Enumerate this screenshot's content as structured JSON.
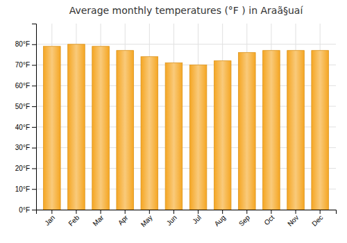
{
  "chart_data": {
    "type": "bar",
    "title": "Average monthly temperatures (°F ) in Araã§uaí",
    "categories": [
      "Jan",
      "Feb",
      "Mar",
      "Apr",
      "May",
      "Jun",
      "Jul",
      "Aug",
      "Sep",
      "Oct",
      "Nov",
      "Dec"
    ],
    "values": [
      79,
      80,
      79,
      77,
      74,
      71,
      70,
      72,
      76,
      77,
      77,
      77
    ],
    "color": "#F5A623",
    "ylim": [
      0,
      90
    ],
    "yticks": [
      {
        "value": 0,
        "label": "0°F"
      },
      {
        "value": 10,
        "label": "10°F"
      },
      {
        "value": 20,
        "label": "20°F"
      },
      {
        "value": 30,
        "label": "30°F"
      },
      {
        "value": 40,
        "label": "40°F"
      },
      {
        "value": 50,
        "label": "50°F"
      },
      {
        "value": 60,
        "label": "60°F"
      },
      {
        "value": 70,
        "label": "70°F"
      },
      {
        "value": 80,
        "label": "80°F"
      }
    ],
    "grid": true
  }
}
